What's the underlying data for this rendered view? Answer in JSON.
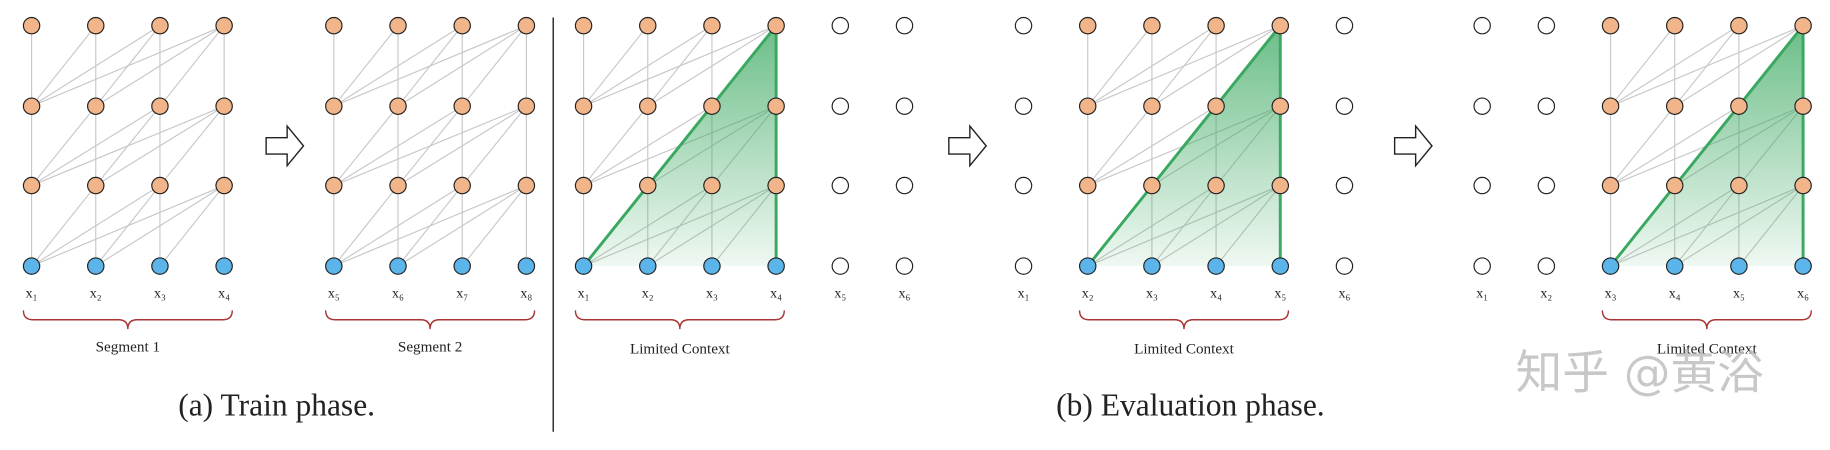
{
  "panels": [
    {
      "tokens": [
        "x₁",
        "x₂",
        "x₃",
        "x₄"
      ],
      "brace_label": "Segment 1"
    },
    {
      "tokens": [
        "x₅",
        "x₆",
        "x₇",
        "x₈"
      ],
      "brace_label": "Segment 2"
    },
    {
      "tokens": [
        "x₁",
        "x₂",
        "x₃",
        "x₄",
        "x₅",
        "x₆"
      ],
      "brace_label": "Limited Context"
    },
    {
      "tokens": [
        "x₁",
        "x₂",
        "x₃",
        "x₄",
        "x₅",
        "x₆"
      ],
      "brace_label": "Limited Context"
    },
    {
      "tokens": [
        "x₁",
        "x₂",
        "x₃",
        "x₄",
        "x₅",
        "x₆"
      ],
      "brace_label": "Limited Context"
    }
  ],
  "captions": [
    "(a) Train phase.",
    "(b) Evaluation phase."
  ],
  "watermark": "知乎 @黄浴"
}
